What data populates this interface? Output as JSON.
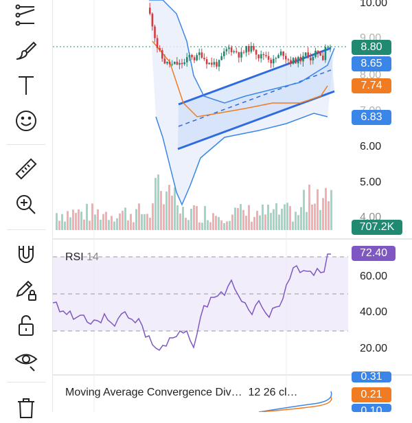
{
  "toolbar": {
    "tools": [
      {
        "name": "trend-line-tool"
      },
      {
        "name": "brush-tool"
      },
      {
        "name": "text-tool",
        "glyph": "T"
      },
      {
        "name": "emoji-tool"
      },
      {
        "name": "ruler-tool"
      },
      {
        "name": "zoom-in-tool"
      },
      {
        "name": "magnet-tool"
      },
      {
        "name": "lock-drawing-tool"
      },
      {
        "name": "unlock-tool"
      },
      {
        "name": "visibility-tool"
      },
      {
        "name": "delete-tool"
      }
    ]
  },
  "price_axis": {
    "labels": [
      "10.00",
      "9.00",
      "8.00",
      "7.00",
      "6.00",
      "5.00",
      "4.00"
    ],
    "tags": {
      "last": "8.80",
      "upper_band": "8.65",
      "mid_band": "7.74",
      "lower_band": "6.83",
      "volume": "707.2K"
    },
    "colors": {
      "last": "#1f8a70",
      "upper": "#3a86e8",
      "mid": "#f07b21",
      "lower": "#3a86e8",
      "volume": "#1f8a70"
    }
  },
  "rsi": {
    "title": "RSI",
    "period": "14",
    "value": "72.40",
    "axis_labels": [
      "60.00",
      "40.00",
      "20.00"
    ],
    "color": "#7e57c2"
  },
  "macd": {
    "title": "Moving Average Convergence Div…",
    "params": "12 26 cl…",
    "tags": [
      "0.31",
      "0.21",
      "0.10"
    ],
    "tag_colors": [
      "#3a86e8",
      "#f07b21",
      "#3a86e8"
    ]
  }
}
